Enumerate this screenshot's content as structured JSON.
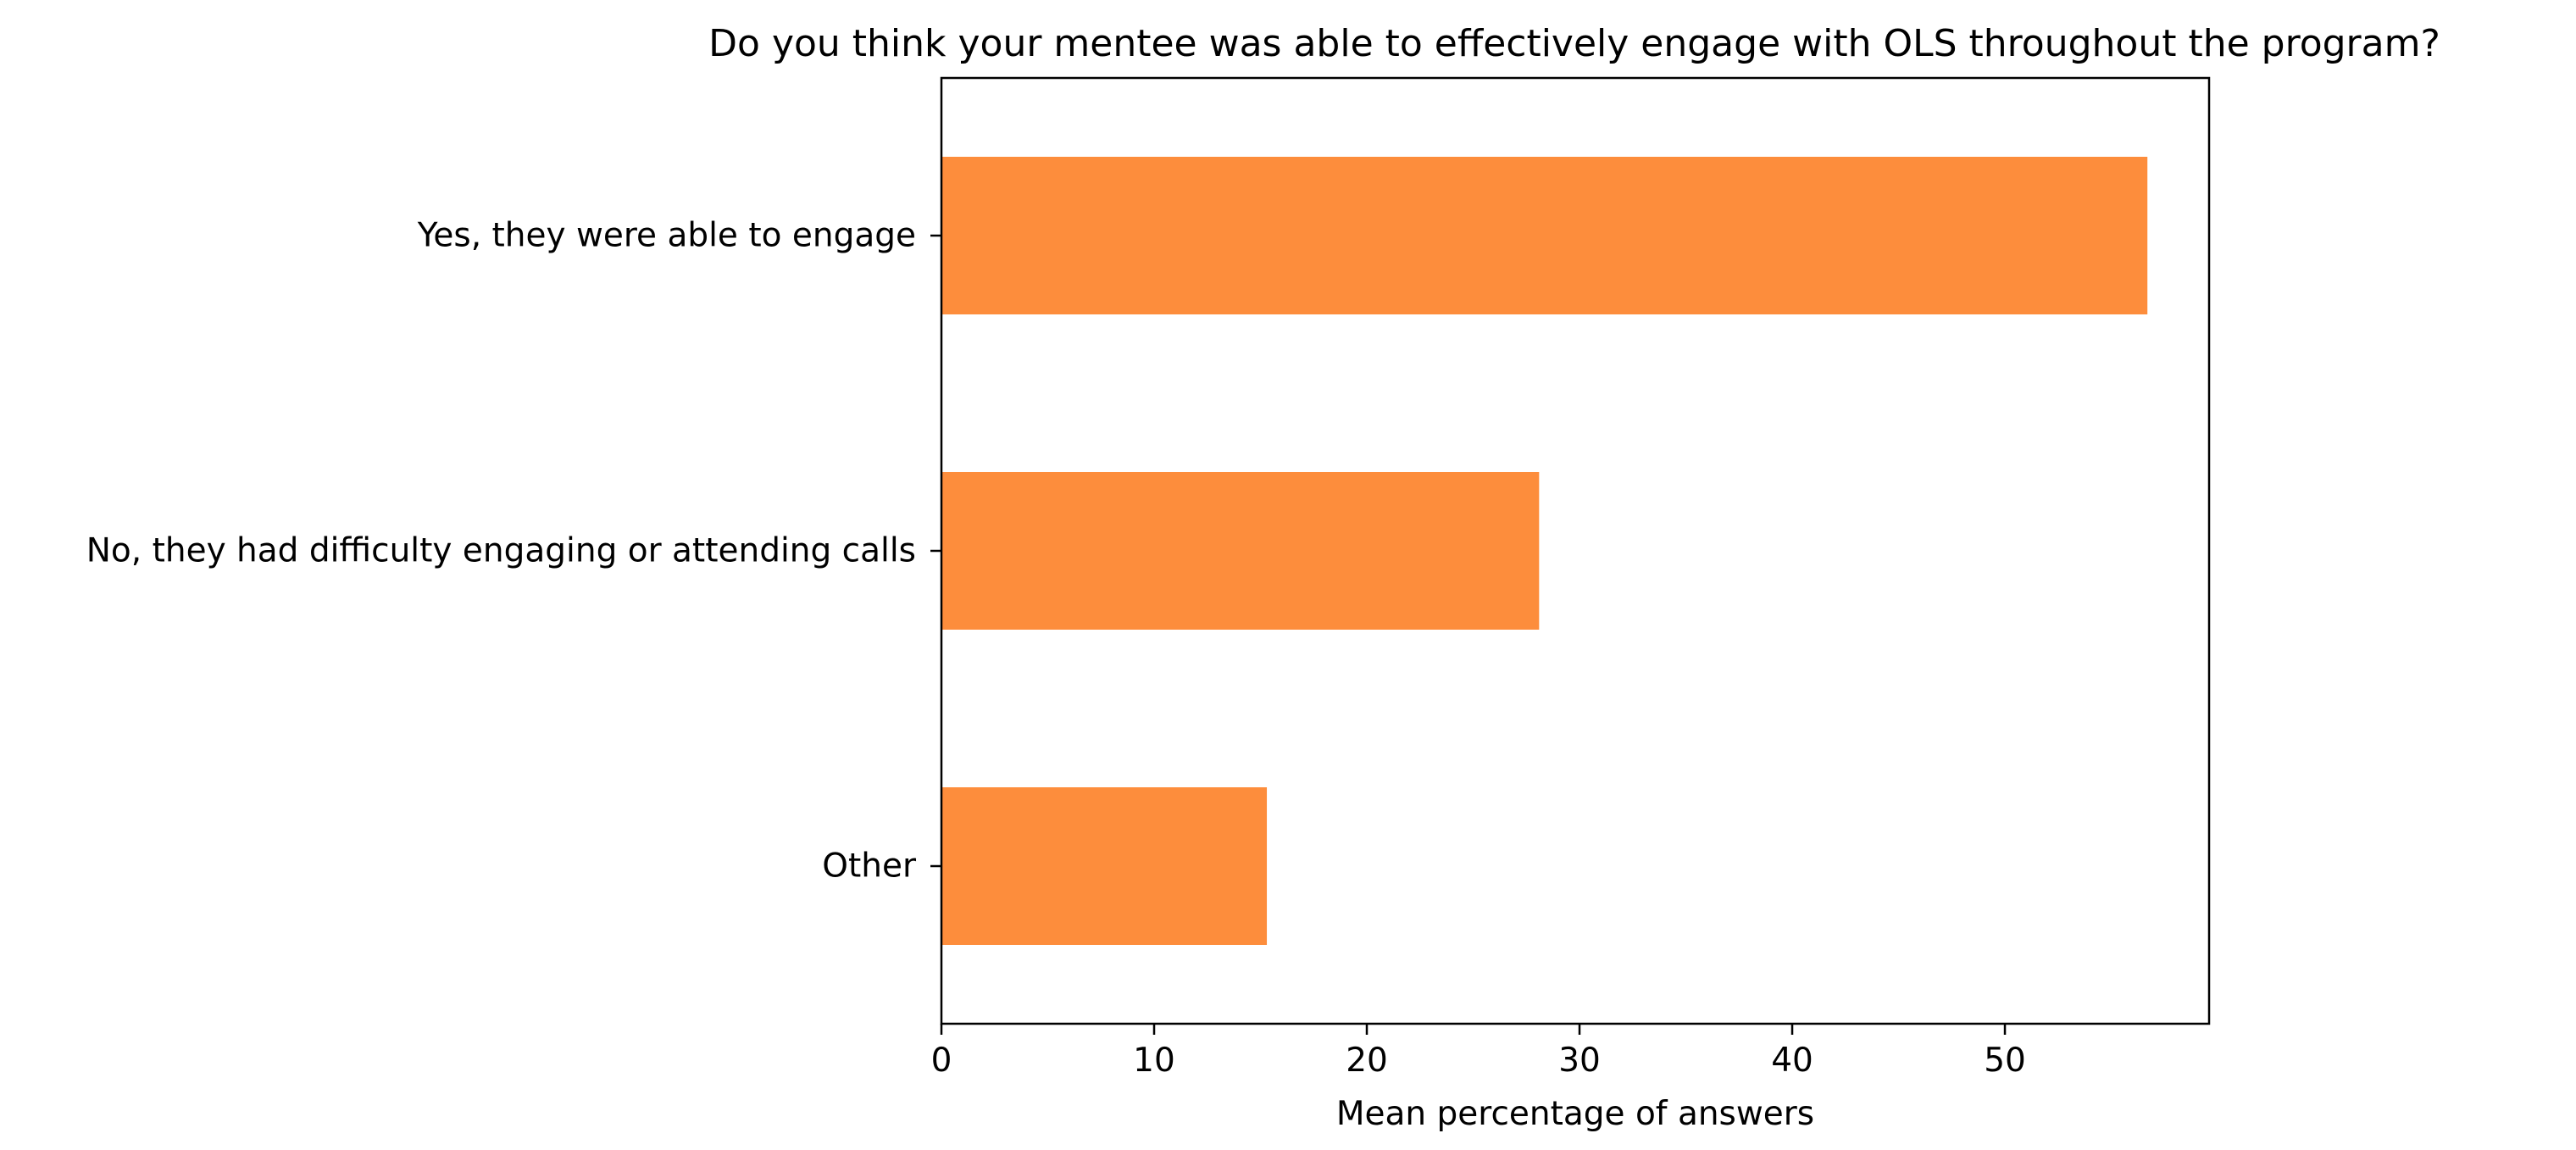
{
  "chart_data": {
    "type": "bar",
    "orientation": "horizontal",
    "title": "Do you think your mentee was able to effectively engage with OLS throughout the program?",
    "xlabel": "Mean percentage of answers",
    "ylabel": "",
    "categories": [
      "Yes, they were able to engage",
      "No, they had difficulty engaging or attending calls",
      "Other"
    ],
    "values": [
      56.7,
      28.1,
      15.3
    ],
    "xlim": [
      0,
      59.6
    ],
    "xticks": [
      0,
      10,
      20,
      30,
      40,
      50
    ],
    "grid": false,
    "legend": "none",
    "bar_color": "#fd8d3c"
  }
}
